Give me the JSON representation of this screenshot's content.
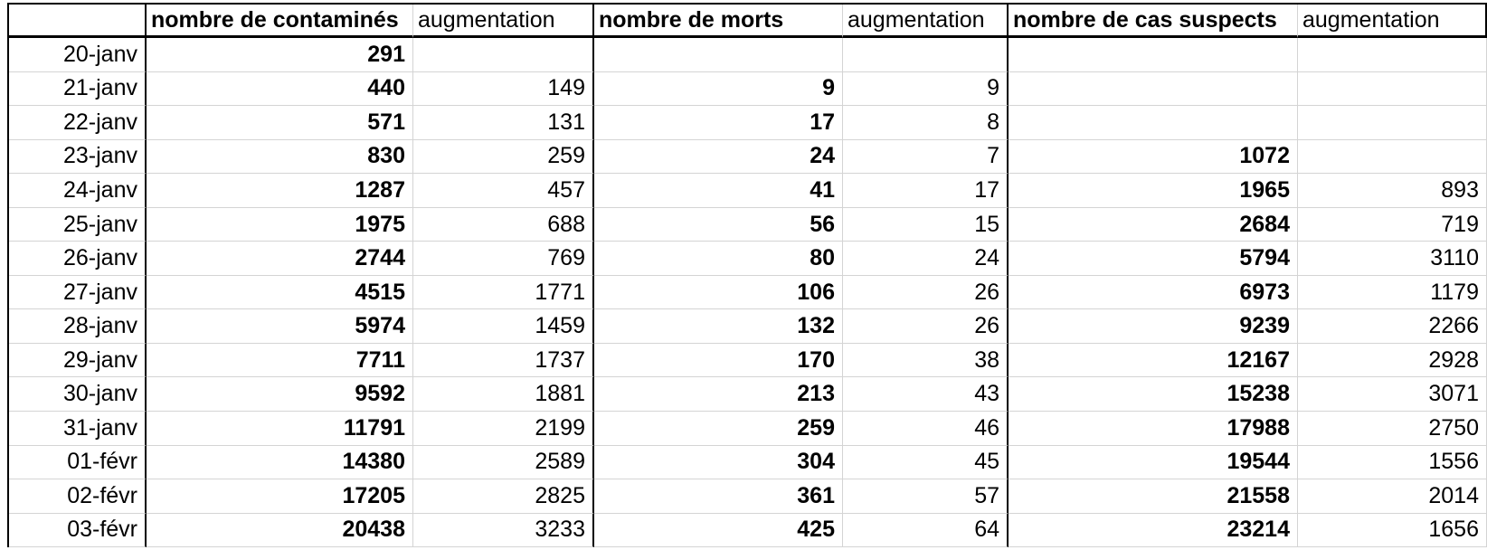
{
  "table": {
    "header": {
      "corner": "",
      "cols": [
        "nombre de contaminés",
        "augmentation",
        "nombre de morts",
        "augmentation",
        "nombre de cas suspects",
        "augmentation"
      ]
    },
    "rows": [
      {
        "date": "20-janv",
        "values": [
          "291",
          "",
          "",
          "",
          "",
          ""
        ]
      },
      {
        "date": "21-janv",
        "values": [
          "440",
          "149",
          "9",
          "9",
          "",
          ""
        ]
      },
      {
        "date": "22-janv",
        "values": [
          "571",
          "131",
          "17",
          "8",
          "",
          ""
        ]
      },
      {
        "date": "23-janv",
        "values": [
          "830",
          "259",
          "24",
          "7",
          "1072",
          ""
        ]
      },
      {
        "date": "24-janv",
        "values": [
          "1287",
          "457",
          "41",
          "17",
          "1965",
          "893"
        ]
      },
      {
        "date": "25-janv",
        "values": [
          "1975",
          "688",
          "56",
          "15",
          "2684",
          "719"
        ]
      },
      {
        "date": "26-janv",
        "values": [
          "2744",
          "769",
          "80",
          "24",
          "5794",
          "3110"
        ]
      },
      {
        "date": "27-janv",
        "values": [
          "4515",
          "1771",
          "106",
          "26",
          "6973",
          "1179"
        ]
      },
      {
        "date": "28-janv",
        "values": [
          "5974",
          "1459",
          "132",
          "26",
          "9239",
          "2266"
        ]
      },
      {
        "date": "29-janv",
        "values": [
          "7711",
          "1737",
          "170",
          "38",
          "12167",
          "2928"
        ]
      },
      {
        "date": "30-janv",
        "values": [
          "9592",
          "1881",
          "213",
          "43",
          "15238",
          "3071"
        ]
      },
      {
        "date": "31-janv",
        "values": [
          "11791",
          "2199",
          "259",
          "46",
          "17988",
          "2750"
        ]
      },
      {
        "date": "01-févr",
        "values": [
          "14380",
          "2589",
          "304",
          "45",
          "19544",
          "1556"
        ]
      },
      {
        "date": "02-févr",
        "values": [
          "17205",
          "2825",
          "361",
          "57",
          "21558",
          "2014"
        ]
      },
      {
        "date": "03-févr",
        "values": [
          "20438",
          "3233",
          "425",
          "64",
          "23214",
          "1656"
        ]
      }
    ],
    "colors": {
      "background": "#ffffff",
      "text": "#000000",
      "heavy_border": "#000000",
      "grid_line": "#d4d4d4"
    }
  }
}
